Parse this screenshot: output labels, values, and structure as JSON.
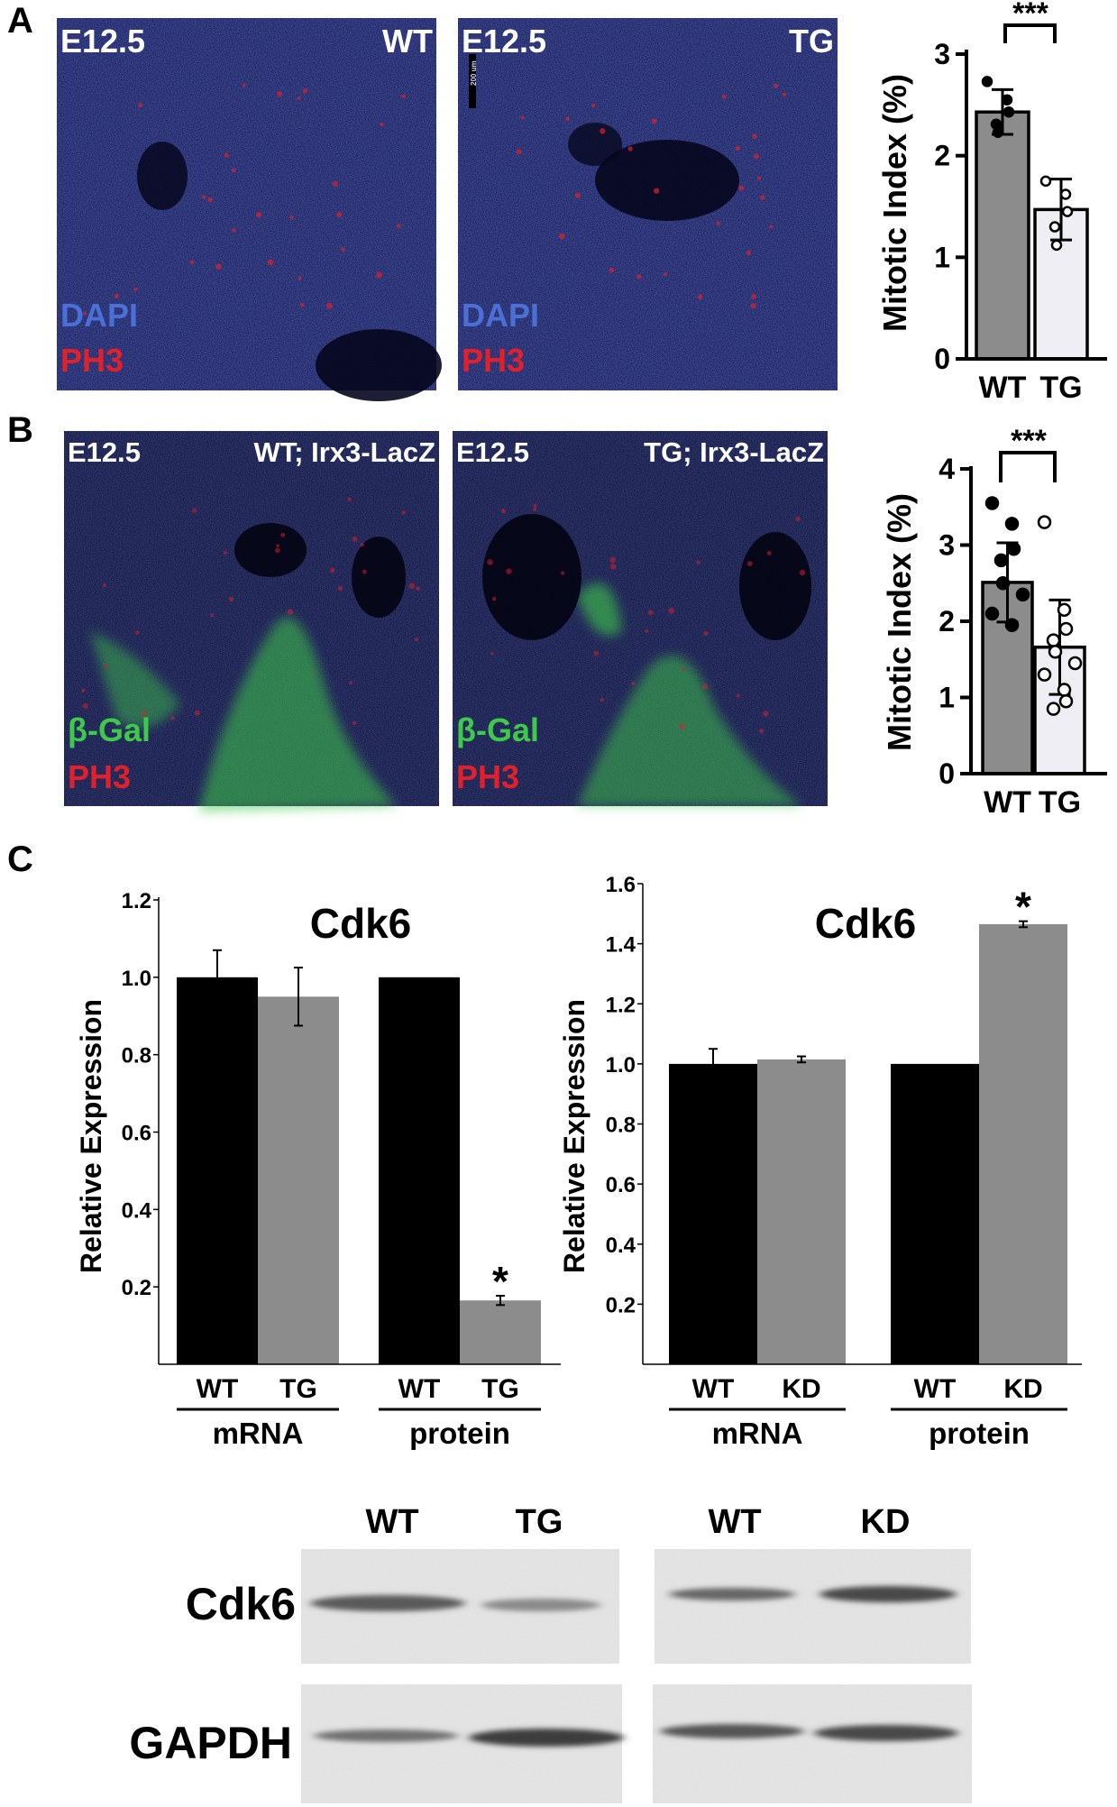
{
  "figure": {
    "panel_labels": [
      "A",
      "B",
      "C"
    ],
    "colors": {
      "wt_bar": "#8c8c8c",
      "tg_bar": "#eeeef4",
      "c_wt_bar": "#000000",
      "c_tg_bar": "#8c8c8c",
      "dapi": "#4a70d6",
      "ph3": "#e0202a",
      "bgal": "#3ec94a"
    }
  },
  "panelA": {
    "images": [
      {
        "stage": "E12.5",
        "genotype": "WT",
        "stain1": "DAPI",
        "stain2": "PH3"
      },
      {
        "stage": "E12.5",
        "genotype": "TG",
        "stain1": "DAPI",
        "stain2": "PH3",
        "scalebar": "200 um"
      }
    ]
  },
  "panelB": {
    "images": [
      {
        "stage": "E12.5",
        "genotype": "WT; Irx3-LacZ",
        "stain1": "β-Gal",
        "stain2": "PH3"
      },
      {
        "stage": "E12.5",
        "genotype": "TG; Irx3-LacZ",
        "stain1": "β-Gal",
        "stain2": "PH3"
      }
    ]
  },
  "panelC": {
    "blot": {
      "row_labels": [
        "Cdk6",
        "GAPDH"
      ],
      "left_lanes": [
        "WT",
        "TG"
      ],
      "right_lanes": [
        "WT",
        "KD"
      ]
    }
  },
  "chart_data": [
    {
      "id": "A-mitotic",
      "type": "bar",
      "categories": [
        "WT",
        "TG"
      ],
      "values": [
        2.43,
        1.47
      ],
      "errors": [
        0.22,
        0.3
      ],
      "points": [
        [
          2.73,
          2.55,
          2.43,
          2.31,
          2.23
        ],
        [
          1.75,
          1.62,
          1.45,
          1.3,
          1.12
        ]
      ],
      "ylabel": "Mitotic Index (%)",
      "ylim": [
        0,
        3
      ],
      "yticks": [
        0,
        1,
        2,
        3
      ],
      "significance": "***"
    },
    {
      "id": "B-mitotic",
      "type": "bar",
      "categories": [
        "WT",
        "TG"
      ],
      "values": [
        2.51,
        1.66
      ],
      "errors": [
        0.52,
        0.62
      ],
      "points": [
        [
          3.55,
          3.28,
          2.95,
          2.8,
          2.5,
          2.35,
          2.1,
          1.95
        ],
        [
          3.3,
          2.15,
          1.9,
          1.75,
          1.6,
          1.45,
          1.3,
          1.1,
          0.95,
          0.85
        ]
      ],
      "ylabel": "Mitotic Index (%)",
      "ylim": [
        0,
        4
      ],
      "yticks": [
        0,
        1,
        2,
        3,
        4
      ],
      "significance": "***"
    },
    {
      "id": "C-left",
      "type": "bar",
      "title": "Cdk6",
      "ylabel": "Relative Expression",
      "ylim": [
        0,
        1.2
      ],
      "yticks": [
        "0.2",
        "0.4",
        "0.6",
        "0.8",
        "1.0",
        "1.2"
      ],
      "groups": [
        {
          "label": "mRNA",
          "categories": [
            "WT",
            "TG"
          ],
          "values": [
            1.0,
            0.95
          ],
          "errors": [
            0.07,
            0.075
          ],
          "stars": [
            "",
            ""
          ]
        },
        {
          "label": "protein",
          "categories": [
            "WT",
            "TG"
          ],
          "values": [
            1.0,
            0.165
          ],
          "errors": [
            0,
            0.012
          ],
          "stars": [
            "",
            "*"
          ]
        }
      ]
    },
    {
      "id": "C-right",
      "type": "bar",
      "title": "Cdk6",
      "ylabel": "Relative Expression",
      "ylim": [
        0,
        1.6
      ],
      "yticks": [
        "0.2",
        "0.4",
        "0.6",
        "0.8",
        "1.0",
        "1.2",
        "1.4",
        "1.6"
      ],
      "groups": [
        {
          "label": "mRNA",
          "categories": [
            "WT",
            "KD"
          ],
          "values": [
            1.0,
            1.015
          ],
          "errors": [
            0.05,
            0.01
          ],
          "stars": [
            "",
            ""
          ]
        },
        {
          "label": "protein",
          "categories": [
            "WT",
            "KD"
          ],
          "values": [
            1.0,
            1.465
          ],
          "errors": [
            0,
            0.01
          ],
          "stars": [
            "",
            "*"
          ]
        }
      ]
    }
  ]
}
